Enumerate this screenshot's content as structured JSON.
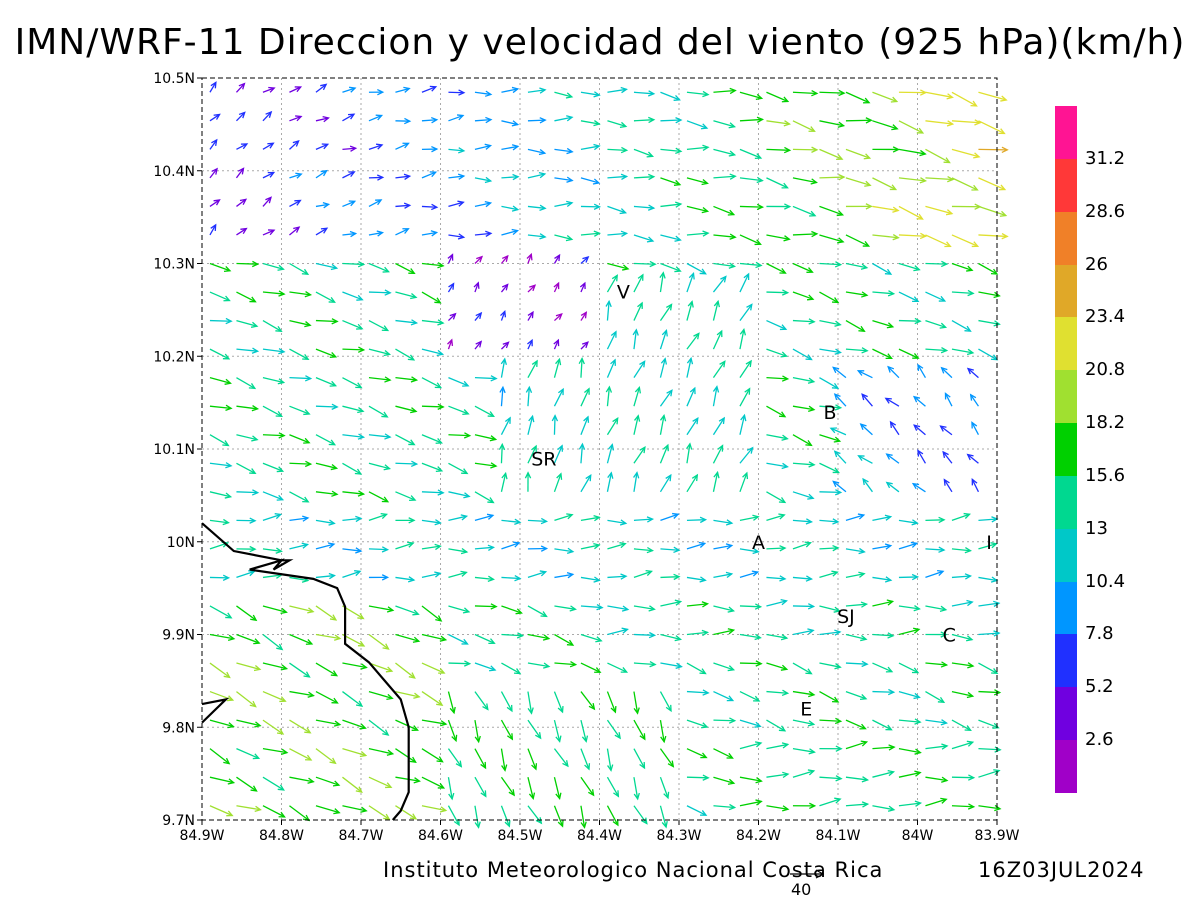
{
  "title": "IMN/WRF-11 Direccion y velocidad del viento (925 hPa)(km/h)",
  "footer": {
    "institution": "Instituto Meteorologico Nacional Costa Rica",
    "timestamp": "16Z03JUL2024",
    "reference_vector": "40"
  },
  "axes": {
    "x_ticks": [
      "84.9W",
      "84.8W",
      "84.7W",
      "84.6W",
      "84.5W",
      "84.4W",
      "84.3W",
      "84.2W",
      "84.1W",
      "84W",
      "83.9W"
    ],
    "y_ticks": [
      "10.5N",
      "10.4N",
      "10.3N",
      "10.2N",
      "10.1N",
      "10N",
      "9.9N",
      "9.8N",
      "9.7N"
    ],
    "lon_range": [
      -84.9,
      -83.9
    ],
    "lat_range": [
      9.7,
      10.5
    ],
    "grid": "dotted"
  },
  "stations": [
    {
      "label": "V",
      "lon": -84.37,
      "lat": 10.27
    },
    {
      "label": "B",
      "lon": -84.11,
      "lat": 10.14
    },
    {
      "label": "SR",
      "lon": -84.47,
      "lat": 10.09
    },
    {
      "label": "A",
      "lon": -84.2,
      "lat": 10.0
    },
    {
      "label": "I",
      "lon": -83.91,
      "lat": 10.0
    },
    {
      "label": "SJ",
      "lon": -84.09,
      "lat": 9.92
    },
    {
      "label": "C",
      "lon": -83.96,
      "lat": 9.9
    },
    {
      "label": "E",
      "lon": -84.14,
      "lat": 9.82
    }
  ],
  "colorbar": {
    "labels": [
      "31.2",
      "28.6",
      "26",
      "23.4",
      "20.8",
      "18.2",
      "15.6",
      "13",
      "10.4",
      "7.8",
      "5.2",
      "2.6"
    ],
    "colors": [
      "#ff1493",
      "#ff3838",
      "#f08028",
      "#e0a828",
      "#e0e030",
      "#a0e030",
      "#00d000",
      "#00d890",
      "#00c8c8",
      "#0096ff",
      "#2030ff",
      "#7000e0",
      "#a000c8"
    ]
  },
  "wind_field": {
    "description_units": "km/h",
    "coastline_lonlat": [
      [
        -84.9,
        10.02
      ],
      [
        -84.86,
        9.99
      ],
      [
        -84.8,
        9.98
      ],
      [
        -84.79,
        9.98
      ],
      [
        -84.81,
        9.97
      ],
      [
        -84.8,
        9.98
      ],
      [
        -84.84,
        9.97
      ],
      [
        -84.76,
        9.96
      ],
      [
        -84.73,
        9.95
      ],
      [
        -84.72,
        9.93
      ],
      [
        -84.72,
        9.89
      ],
      [
        -84.69,
        9.87
      ],
      [
        -84.67,
        9.85
      ],
      [
        -84.65,
        9.83
      ],
      [
        -84.64,
        9.8
      ],
      [
        -84.64,
        9.77
      ],
      [
        -84.64,
        9.73
      ],
      [
        -84.65,
        9.71
      ],
      [
        -84.66,
        9.7
      ]
    ],
    "peninsula_lonlat": [
      [
        -84.9,
        9.825
      ],
      [
        -84.87,
        9.83
      ],
      [
        -84.9,
        9.805
      ]
    ]
  }
}
